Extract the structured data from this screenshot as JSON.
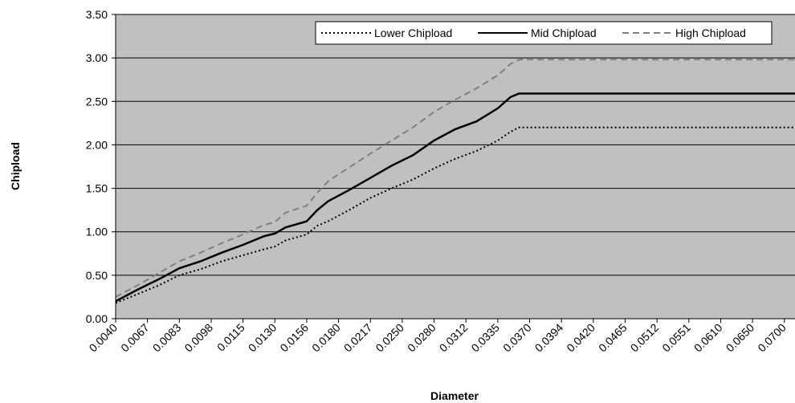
{
  "chart_data": {
    "type": "line",
    "xlabel": "Diameter",
    "ylabel": "Chipload",
    "ylim": [
      0,
      3.5
    ],
    "yticks": [
      "0.00",
      "0.50",
      "1.00",
      "1.50",
      "2.00",
      "2.50",
      "3.00",
      "3.50"
    ],
    "xtick_labels": [
      "0.0040",
      "0.0067",
      "0.0083",
      "0.0098",
      "0.0115",
      "0.0130",
      "0.0156",
      "0.0180",
      "0.0217",
      "0.0250",
      "0.0280",
      "0.0312",
      "0.0335",
      "0.0370",
      "0.0394",
      "0.0420",
      "0.0465",
      "0.0512",
      "0.0551",
      "0.0610",
      "0.0650",
      "0.0700"
    ],
    "grid": true,
    "legend_position": "top-right",
    "series": [
      {
        "name": "Lower Chipload",
        "color": "#000000",
        "dash": "dotted",
        "points": [
          [
            0,
            0.18
          ],
          [
            1,
            0.28
          ],
          [
            2,
            0.38
          ],
          [
            3,
            0.5
          ],
          [
            4,
            0.57
          ],
          [
            5,
            0.66
          ],
          [
            6,
            0.73
          ],
          [
            7,
            0.8
          ],
          [
            7.5,
            0.83
          ],
          [
            8,
            0.9
          ],
          [
            9,
            0.97
          ],
          [
            9.5,
            1.07
          ],
          [
            10,
            1.12
          ],
          [
            11,
            1.25
          ],
          [
            12,
            1.39
          ],
          [
            13,
            1.5
          ],
          [
            14,
            1.6
          ],
          [
            15,
            1.73
          ],
          [
            16,
            1.84
          ],
          [
            17,
            1.93
          ],
          [
            18,
            2.05
          ],
          [
            18.6,
            2.15
          ],
          [
            19,
            2.2
          ],
          [
            32,
            2.2
          ]
        ]
      },
      {
        "name": "Mid Chipload",
        "color": "#000000",
        "dash": "solid",
        "points": [
          [
            0,
            0.2
          ],
          [
            1,
            0.33
          ],
          [
            2,
            0.45
          ],
          [
            3,
            0.58
          ],
          [
            4,
            0.66
          ],
          [
            5,
            0.76
          ],
          [
            6,
            0.85
          ],
          [
            7,
            0.95
          ],
          [
            7.5,
            0.98
          ],
          [
            8,
            1.05
          ],
          [
            9,
            1.12
          ],
          [
            9.5,
            1.25
          ],
          [
            10,
            1.35
          ],
          [
            11,
            1.48
          ],
          [
            12,
            1.62
          ],
          [
            13,
            1.76
          ],
          [
            14,
            1.88
          ],
          [
            15,
            2.05
          ],
          [
            16,
            2.18
          ],
          [
            17,
            2.27
          ],
          [
            18,
            2.42
          ],
          [
            18.6,
            2.55
          ],
          [
            19,
            2.59
          ],
          [
            32,
            2.59
          ]
        ]
      },
      {
        "name": "High Chipload",
        "color": "#808080",
        "dash": "dashed",
        "points": [
          [
            0,
            0.25
          ],
          [
            1,
            0.38
          ],
          [
            2,
            0.52
          ],
          [
            3,
            0.66
          ],
          [
            4,
            0.76
          ],
          [
            5,
            0.87
          ],
          [
            6,
            0.97
          ],
          [
            7,
            1.08
          ],
          [
            7.5,
            1.11
          ],
          [
            8,
            1.22
          ],
          [
            9,
            1.3
          ],
          [
            9.5,
            1.45
          ],
          [
            10,
            1.58
          ],
          [
            11,
            1.74
          ],
          [
            12,
            1.9
          ],
          [
            13,
            2.05
          ],
          [
            14,
            2.2
          ],
          [
            15,
            2.38
          ],
          [
            16,
            2.52
          ],
          [
            17,
            2.65
          ],
          [
            18,
            2.8
          ],
          [
            18.6,
            2.93
          ],
          [
            19,
            2.98
          ],
          [
            32,
            2.98
          ]
        ]
      }
    ]
  }
}
